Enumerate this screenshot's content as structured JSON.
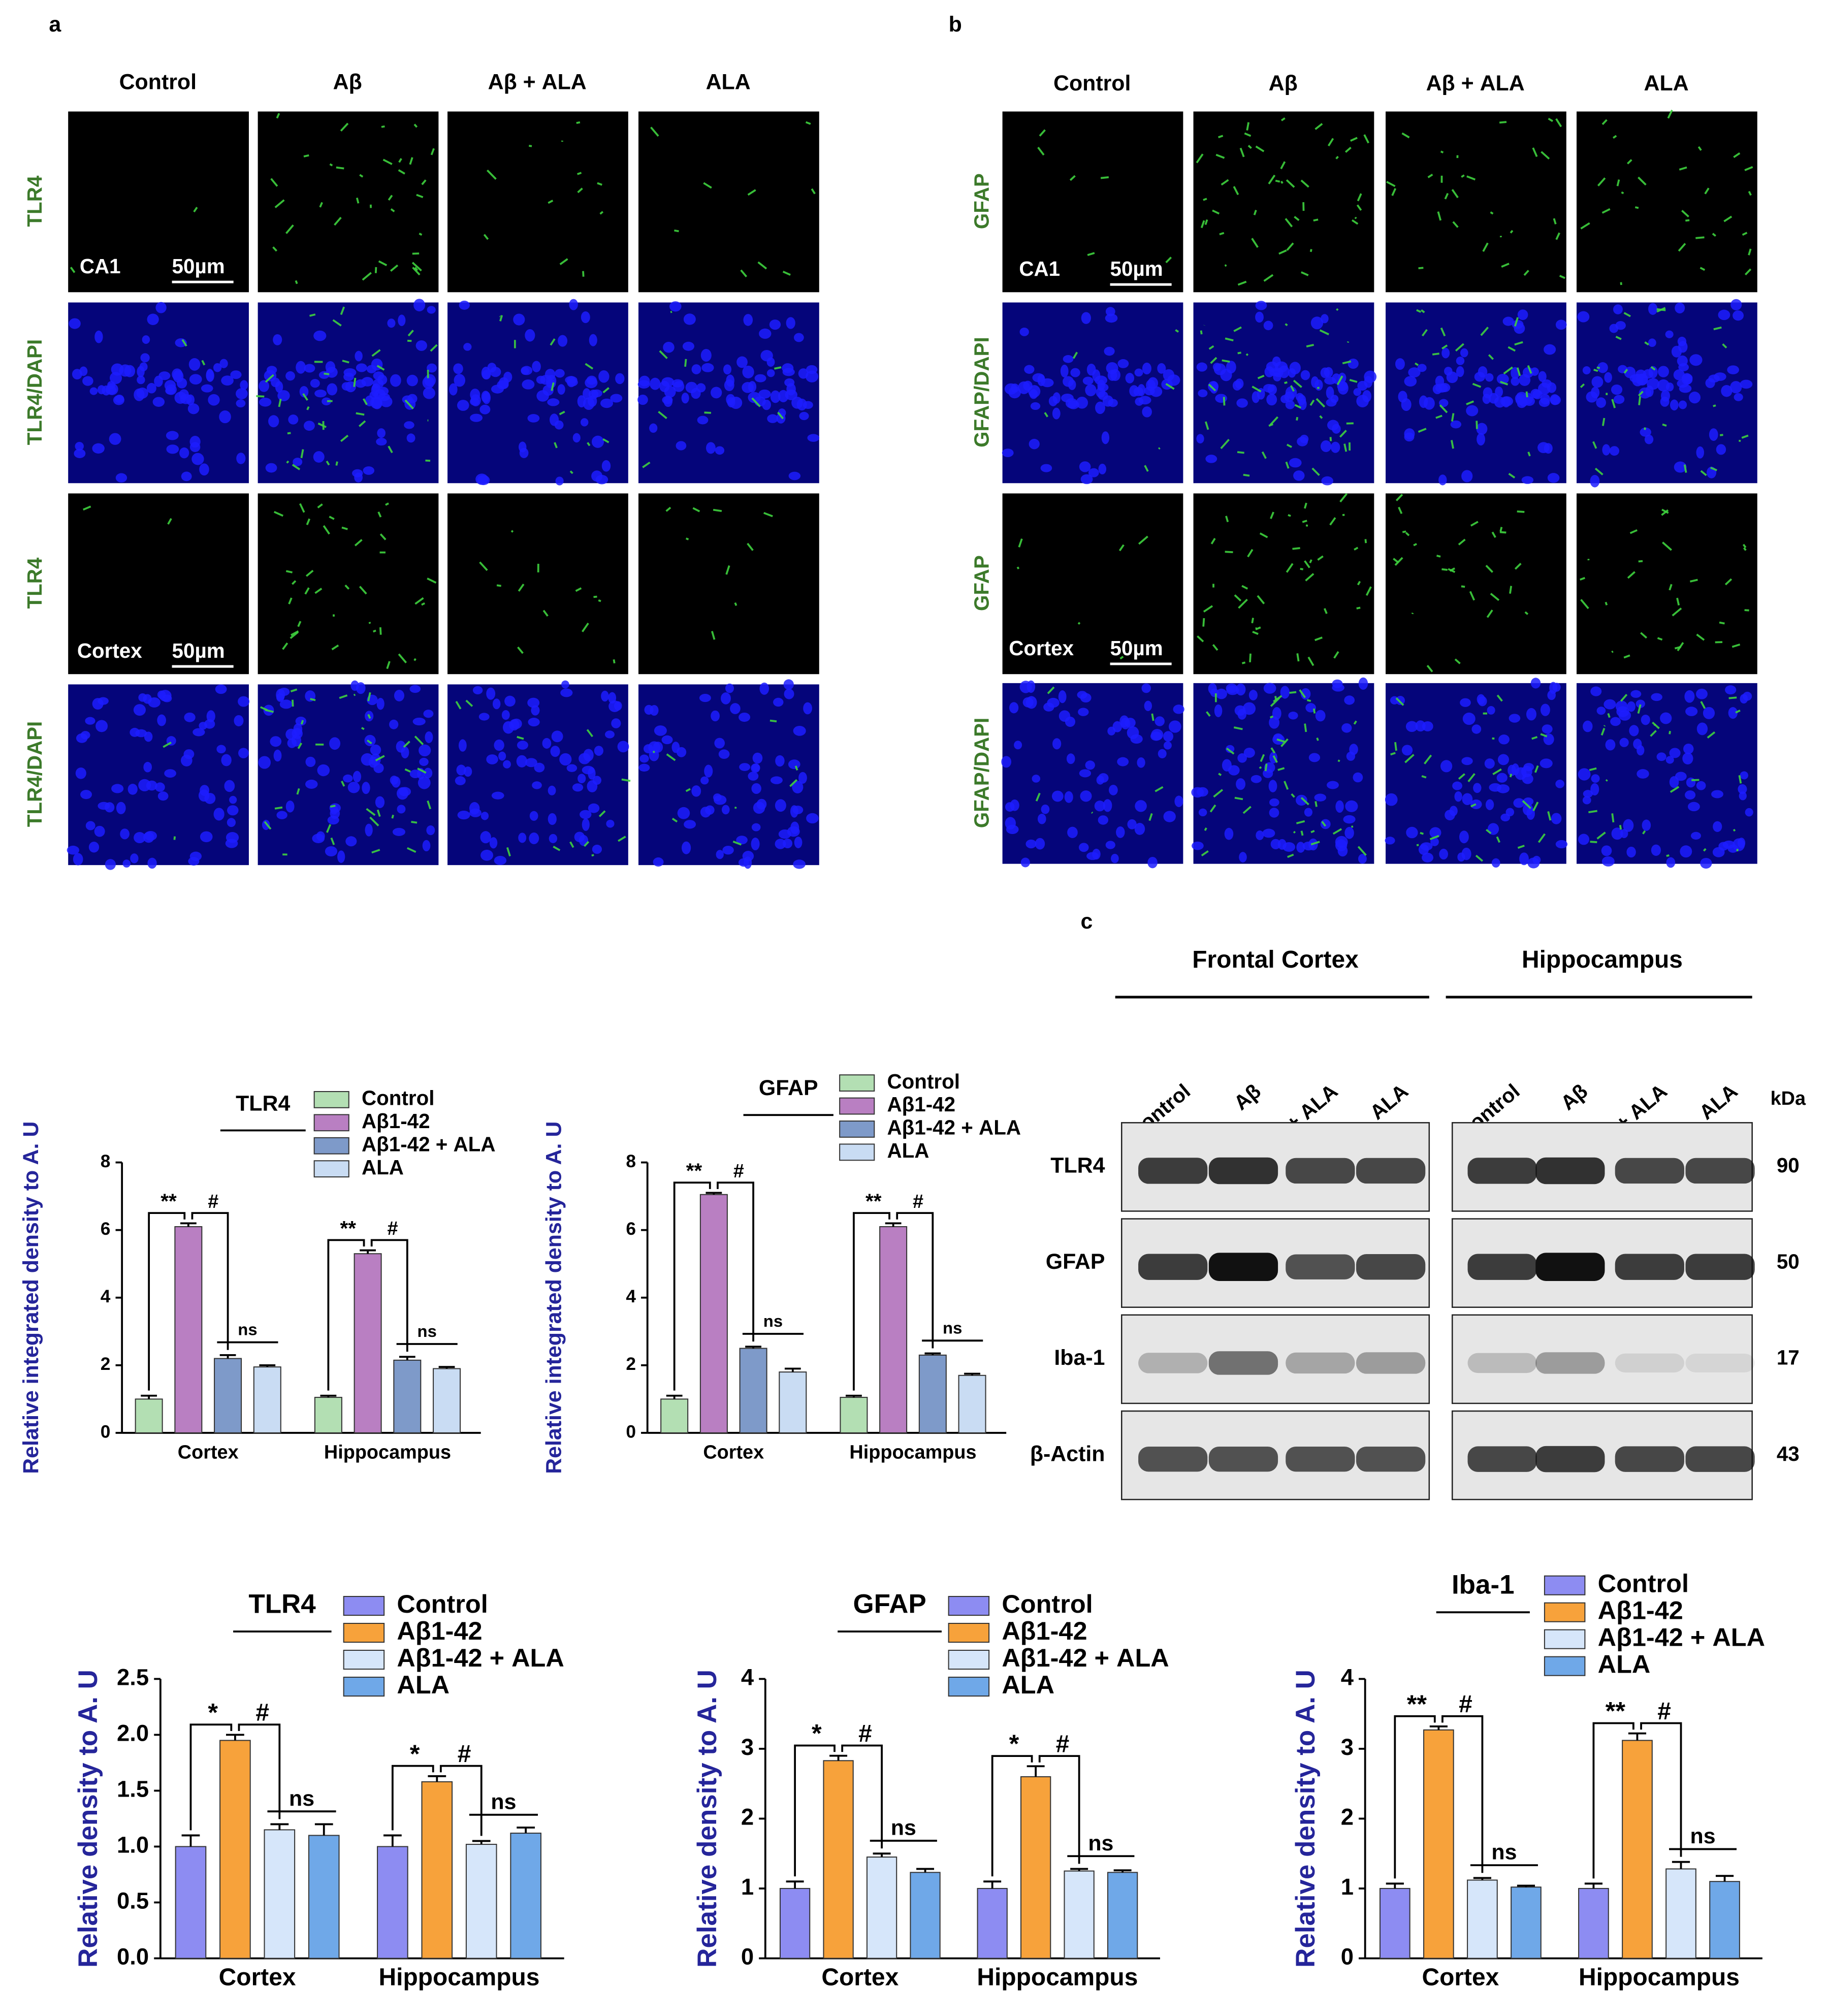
{
  "panel_labels": [
    "a",
    "b",
    "c"
  ],
  "panel_a": {
    "columns": [
      "Control",
      "Aβ",
      "Aβ + ALA",
      "ALA"
    ],
    "rows": [
      "TLR4",
      "TLR4/DAPI",
      "TLR4",
      "TLR4/DAPI"
    ],
    "region_labels": [
      "CA1",
      "Cortex"
    ],
    "scale_bars": [
      "50µm",
      "50µm"
    ]
  },
  "panel_b": {
    "columns": [
      "Control",
      "Aβ",
      "Aβ + ALA",
      "ALA"
    ],
    "rows": [
      "GFAP",
      "GFAP/DAPI",
      "GFAP",
      "GFAP/DAPI"
    ],
    "region_labels": [
      "CA1",
      "Cortex"
    ],
    "scale_bars": [
      "50µm",
      "50µm"
    ]
  },
  "blot": {
    "groups": [
      "Frontal Cortex",
      "Hippocampus"
    ],
    "lanes": [
      "Control",
      "Aβ",
      "Aβ + ALA",
      "ALA"
    ],
    "kda_label": "kDa",
    "proteins": [
      {
        "name": "TLR4",
        "kda": "90"
      },
      {
        "name": "GFAP",
        "kda": "50"
      },
      {
        "name": "Iba-1",
        "kda": "17"
      },
      {
        "name": "β-Actin",
        "kda": "43"
      }
    ]
  },
  "chart_data": [
    {
      "type": "bar",
      "title": "TLR4",
      "y_label": "Relative integrated density to A. U",
      "categories": [
        "Cortex",
        "Hippocampus"
      ],
      "series": [
        {
          "name": "Control",
          "color": "#b3dfb3",
          "values": [
            1.0,
            1.05
          ],
          "errors": [
            0.1,
            0.05
          ]
        },
        {
          "name": "Aβ1-42",
          "color": "#b97fc2",
          "values": [
            6.1,
            5.3
          ],
          "errors": [
            0.1,
            0.1
          ]
        },
        {
          "name": "Aβ1-42 + ALA",
          "color": "#7e9ac9",
          "values": [
            2.2,
            2.15
          ],
          "errors": [
            0.1,
            0.1
          ]
        },
        {
          "name": "ALA",
          "color": "#c9dcf3",
          "values": [
            1.95,
            1.9
          ],
          "errors": [
            0.05,
            0.05
          ]
        }
      ],
      "ylim": [
        0,
        8
      ],
      "yticks": [
        0,
        2,
        4,
        6,
        8
      ],
      "annotations": [
        [
          "**",
          "#",
          "ns"
        ],
        [
          "**",
          "#",
          "ns"
        ]
      ]
    },
    {
      "type": "bar",
      "title": "GFAP",
      "y_label": "Relative integrated density to A. U",
      "categories": [
        "Cortex",
        "Hippocampus"
      ],
      "series": [
        {
          "name": "Control",
          "color": "#b3dfb3",
          "values": [
            1.0,
            1.05
          ],
          "errors": [
            0.1,
            0.05
          ]
        },
        {
          "name": "Aβ1-42",
          "color": "#b97fc2",
          "values": [
            7.05,
            6.1
          ],
          "errors": [
            0.05,
            0.1
          ]
        },
        {
          "name": "Aβ1-42 + ALA",
          "color": "#7e9ac9",
          "values": [
            2.5,
            2.3
          ],
          "errors": [
            0.05,
            0.05
          ]
        },
        {
          "name": "ALA",
          "color": "#c9dcf3",
          "values": [
            1.8,
            1.7
          ],
          "errors": [
            0.1,
            0.05
          ]
        }
      ],
      "ylim": [
        0,
        8
      ],
      "yticks": [
        0,
        2,
        4,
        6,
        8
      ],
      "annotations": [
        [
          "**",
          "#",
          "ns"
        ],
        [
          "**",
          "#",
          "ns"
        ]
      ]
    },
    {
      "type": "bar",
      "title": "TLR4",
      "y_label": "Relative density to A. U",
      "categories": [
        "Cortex",
        "Hippocampus"
      ],
      "series": [
        {
          "name": "Control",
          "color": "#8d8cf2",
          "values": [
            1.0,
            1.0
          ],
          "errors": [
            0.1,
            0.1
          ]
        },
        {
          "name": "Aβ1-42",
          "color": "#f7a23b",
          "values": [
            1.95,
            1.58
          ],
          "errors": [
            0.05,
            0.05
          ]
        },
        {
          "name": "Aβ1-42 + ALA",
          "color": "#d6e6fa",
          "values": [
            1.15,
            1.02
          ],
          "errors": [
            0.05,
            0.03
          ]
        },
        {
          "name": "ALA",
          "color": "#6fa8e8",
          "values": [
            1.1,
            1.12
          ],
          "errors": [
            0.1,
            0.05
          ]
        }
      ],
      "ylim": [
        0,
        2.5
      ],
      "yticks": [
        {
          "value": 0,
          "label": "0.0"
        },
        0.5,
        {
          "value": 1,
          "label": "1.0"
        },
        1.5,
        {
          "value": 2,
          "label": "2.0"
        },
        2.5
      ],
      "annotations": [
        [
          "*",
          "#",
          "ns"
        ],
        [
          "*",
          "#",
          "ns"
        ]
      ]
    },
    {
      "type": "bar",
      "title": "GFAP",
      "y_label": "Relative density to A. U",
      "categories": [
        "Cortex",
        "Hippocampus"
      ],
      "series": [
        {
          "name": "Control",
          "color": "#8d8cf2",
          "values": [
            1.0,
            1.0
          ],
          "errors": [
            0.1,
            0.1
          ]
        },
        {
          "name": "Aβ1-42",
          "color": "#f7a23b",
          "values": [
            2.83,
            2.6
          ],
          "errors": [
            0.07,
            0.15
          ]
        },
        {
          "name": "Aβ1-42 + ALA",
          "color": "#d6e6fa",
          "values": [
            1.45,
            1.25
          ],
          "errors": [
            0.05,
            0.03
          ]
        },
        {
          "name": "ALA",
          "color": "#6fa8e8",
          "values": [
            1.23,
            1.23
          ],
          "errors": [
            0.05,
            0.03
          ]
        }
      ],
      "ylim": [
        0,
        4
      ],
      "yticks": [
        0,
        1,
        2,
        3,
        4
      ],
      "annotations": [
        [
          "*",
          "#",
          "ns"
        ],
        [
          "*",
          "#",
          "ns"
        ]
      ]
    },
    {
      "type": "bar",
      "title": "Iba-1",
      "y_label": "Relative density to A. U",
      "categories": [
        "Cortex",
        "Hippocampus"
      ],
      "series": [
        {
          "name": "Control",
          "color": "#8d8cf2",
          "values": [
            1.0,
            1.0
          ],
          "errors": [
            0.07,
            0.07
          ]
        },
        {
          "name": "Aβ1-42",
          "color": "#f7a23b",
          "values": [
            3.27,
            3.12
          ],
          "errors": [
            0.05,
            0.1
          ]
        },
        {
          "name": "Aβ1-42 + ALA",
          "color": "#d6e6fa",
          "values": [
            1.12,
            1.28
          ],
          "errors": [
            0.03,
            0.1
          ]
        },
        {
          "name": "ALA",
          "color": "#6fa8e8",
          "values": [
            1.02,
            1.1
          ],
          "errors": [
            0.02,
            0.08
          ]
        }
      ],
      "ylim": [
        0,
        4
      ],
      "yticks": [
        0,
        1,
        2,
        3,
        4
      ],
      "annotations": [
        [
          "**",
          "#",
          "ns"
        ],
        [
          "**",
          "#",
          "ns"
        ]
      ]
    }
  ]
}
